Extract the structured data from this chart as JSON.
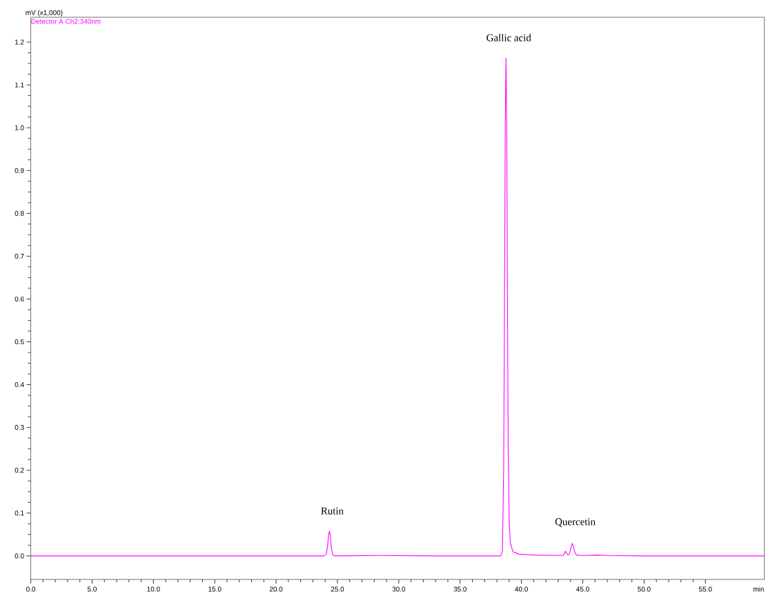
{
  "chart_data": {
    "type": "line",
    "xlabel": "min",
    "ylabel": "mV (x1,000)",
    "xlim": [
      0,
      59.8
    ],
    "ylim": [
      -0.055,
      1.258
    ],
    "xticks": [
      {
        "value": 0,
        "label": "0.0"
      },
      {
        "value": 5,
        "label": "5.0"
      },
      {
        "value": 10,
        "label": "10.0"
      },
      {
        "value": 15,
        "label": "15.0"
      },
      {
        "value": 20,
        "label": "20.0"
      },
      {
        "value": 25,
        "label": "25.0"
      },
      {
        "value": 30,
        "label": "30.0"
      },
      {
        "value": 35,
        "label": "35.0"
      },
      {
        "value": 40,
        "label": "40.0"
      },
      {
        "value": 45,
        "label": "45.0"
      },
      {
        "value": 50,
        "label": "50.0"
      },
      {
        "value": 55,
        "label": "55.0"
      }
    ],
    "yticks": [
      {
        "value": 0,
        "label": "0.0"
      },
      {
        "value": 0.1,
        "label": "0.1"
      },
      {
        "value": 0.2,
        "label": "0.2"
      },
      {
        "value": 0.3,
        "label": "0.3"
      },
      {
        "value": 0.4,
        "label": "0.4"
      },
      {
        "value": 0.5,
        "label": "0.5"
      },
      {
        "value": 0.6,
        "label": "0.6"
      },
      {
        "value": 0.7,
        "label": "0.7"
      },
      {
        "value": 0.8,
        "label": "0.8"
      },
      {
        "value": 0.9,
        "label": "0.9"
      },
      {
        "value": 1.0,
        "label": "1.0"
      },
      {
        "value": 1.1,
        "label": "1.1"
      },
      {
        "value": 1.2,
        "label": "1.2"
      }
    ],
    "legend": "top left",
    "grid": false,
    "marker": "none",
    "annotations": [
      {
        "text": "Rutin",
        "x": 24.35,
        "y": 0.058
      },
      {
        "text": "Gallic acid",
        "x": 38.74,
        "y": 1.163
      },
      {
        "text": "Quercetin",
        "x": 44.16,
        "y": 0.029
      }
    ],
    "series": [
      {
        "name": "Detector A Ch2:340nm",
        "color": "#ff00ff",
        "x": [
          0,
          5,
          10,
          15,
          20,
          23.9,
          24.1,
          24.2,
          24.3,
          24.35,
          24.42,
          24.5,
          24.6,
          24.75,
          28.3,
          33,
          38.3,
          38.45,
          38.55,
          38.62,
          38.68,
          38.74,
          38.8,
          38.86,
          38.92,
          39.0,
          39.1,
          39.3,
          39.8,
          41,
          43.4,
          43.5,
          43.58,
          43.68,
          43.8,
          43.9,
          44.0,
          44.1,
          44.16,
          44.25,
          44.35,
          44.5,
          45,
          46.2,
          47,
          50,
          55,
          59.8
        ],
        "values": [
          0,
          0,
          0,
          0,
          0,
          0,
          0.004,
          0.025,
          0.052,
          0.058,
          0.048,
          0.02,
          0.004,
          0,
          0.001,
          0,
          0,
          0.01,
          0.2,
          0.6,
          1.0,
          1.163,
          1.0,
          0.6,
          0.25,
          0.08,
          0.03,
          0.01,
          0.004,
          0.002,
          0.001,
          0.006,
          0.011,
          0.006,
          0.002,
          0.004,
          0.015,
          0.027,
          0.029,
          0.02,
          0.008,
          0.002,
          0.001,
          0.002,
          0.001,
          0,
          0,
          0
        ]
      }
    ]
  }
}
